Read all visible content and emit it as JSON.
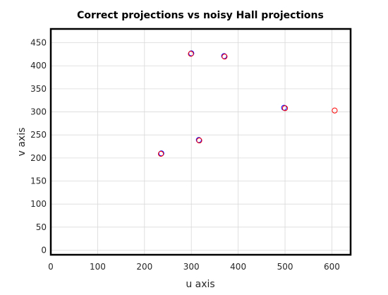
{
  "chart_data": {
    "type": "scatter",
    "title": "Correct projections vs noisy Hall projections",
    "xlabel": "u axis",
    "ylabel": "v axis",
    "xlim": [
      0,
      640
    ],
    "ylim": [
      -10,
      480
    ],
    "xticks": [
      0,
      100,
      200,
      300,
      400,
      500,
      600
    ],
    "yticks": [
      0,
      50,
      100,
      150,
      200,
      250,
      300,
      350,
      400,
      450
    ],
    "grid": true,
    "series": [
      {
        "color": "#0000ff",
        "marker": "circle-open",
        "points": [
          {
            "x": 236,
            "y": 210
          },
          {
            "x": 300,
            "y": 427
          },
          {
            "x": 316,
            "y": 239
          },
          {
            "x": 370,
            "y": 421
          },
          {
            "x": 498,
            "y": 309
          }
        ]
      },
      {
        "color": "#ff0000",
        "marker": "circle-open",
        "points": [
          {
            "x": 235,
            "y": 209
          },
          {
            "x": 299,
            "y": 426
          },
          {
            "x": 317,
            "y": 238
          },
          {
            "x": 371,
            "y": 420
          },
          {
            "x": 500,
            "y": 308
          },
          {
            "x": 606,
            "y": 303
          }
        ]
      }
    ]
  }
}
